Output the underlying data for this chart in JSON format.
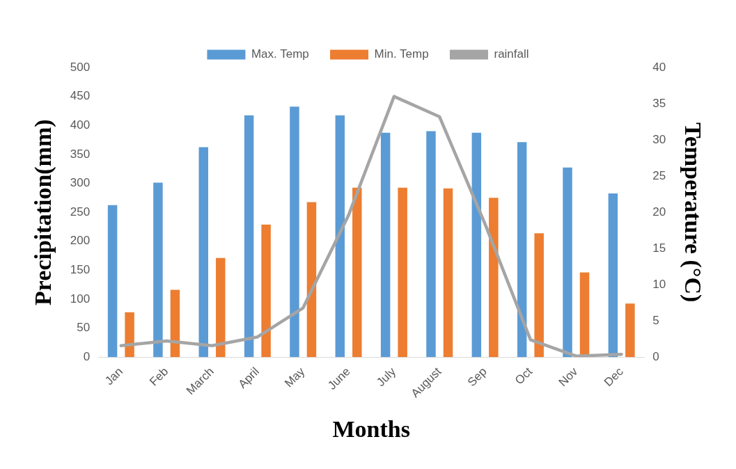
{
  "chart_data": {
    "type": "bar",
    "xlabel": "Months",
    "ylabel": "Precipitation(mm)",
    "y2label": "Temperature (°C)",
    "categories": [
      "Jan",
      "Feb",
      "March",
      "April",
      "May",
      "June",
      "July",
      "August",
      "Sep",
      "Oct",
      "Nov",
      "Dec"
    ],
    "series": [
      {
        "name": "Max. Temp",
        "color": "#5b9bd5",
        "axis": "y2",
        "values": [
          21.0,
          24.1,
          29.0,
          33.4,
          34.6,
          33.4,
          31.0,
          31.2,
          31.0,
          29.7,
          26.2,
          22.6
        ]
      },
      {
        "name": "Min. Temp",
        "color": "#ed7d31",
        "axis": "y2",
        "values": [
          6.2,
          9.3,
          13.7,
          18.3,
          21.4,
          23.4,
          23.4,
          23.3,
          22.0,
          17.1,
          11.7,
          7.4
        ]
      },
      {
        "name": "rainfall",
        "color": "#a5a5a5",
        "type": "line",
        "axis": "y",
        "values": [
          20,
          28,
          20,
          35,
          85,
          245,
          450,
          415,
          230,
          30,
          2,
          5
        ]
      }
    ],
    "ylim": [
      0,
      500
    ],
    "yticks": [
      0,
      50,
      100,
      150,
      200,
      250,
      300,
      350,
      400,
      450,
      500
    ],
    "y2lim": [
      0,
      40
    ],
    "y2ticks": [
      0,
      5,
      10,
      15,
      20,
      25,
      30,
      35,
      40
    ],
    "legend": "top",
    "marker": "none",
    "line_style": "solid"
  }
}
